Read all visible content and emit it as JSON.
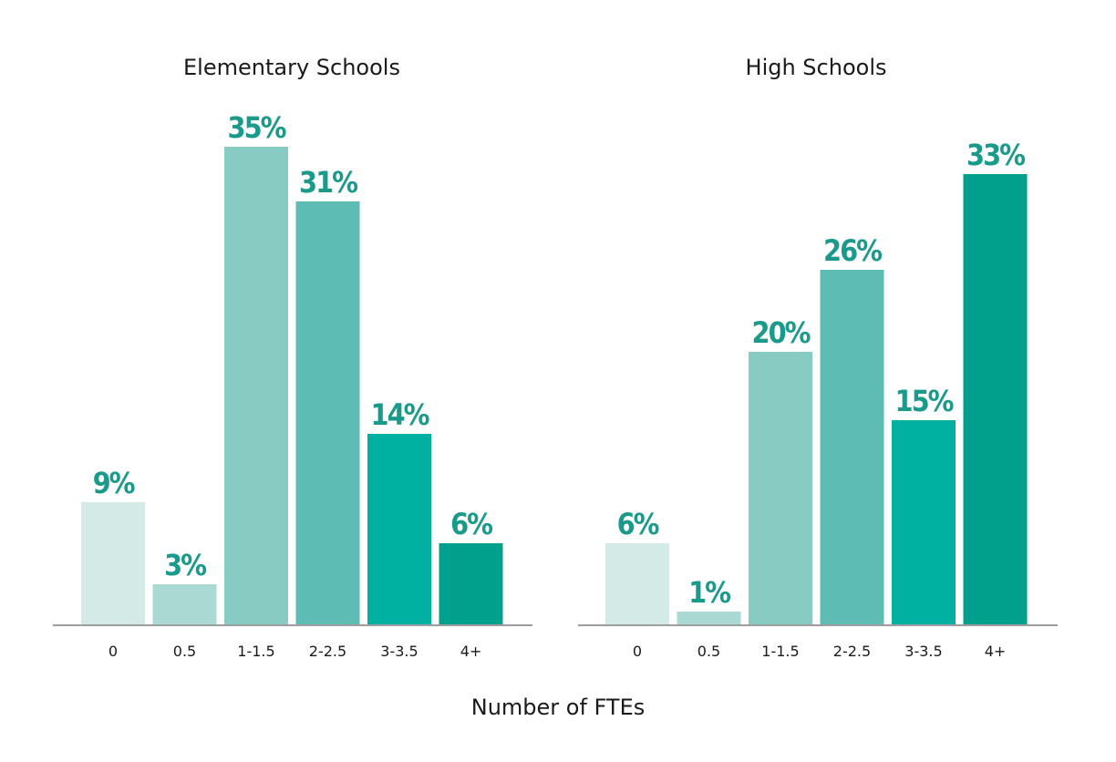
{
  "xlabel": "Number of FTEs",
  "bar_colors": [
    "#d4eae7",
    "#aad8d3",
    "#88cbc2",
    "#5dbcb3",
    "#00b0a0",
    "#00a08d"
  ],
  "label_color": "#1a9a8a",
  "axis_color": "#9e9e9e",
  "chart_data": [
    {
      "type": "bar",
      "title": "Elementary Schools",
      "categories": [
        "0",
        "0.5",
        "1-1.5",
        "2-2.5",
        "3-3.5",
        "4+"
      ],
      "values": [
        9,
        3,
        35,
        31,
        14,
        6
      ],
      "value_labels": [
        "9%",
        "3%",
        "35%",
        "31%",
        "14%",
        "6%"
      ],
      "unit": "%",
      "ylim": [
        0,
        35
      ],
      "grid": false,
      "legend": false
    },
    {
      "type": "bar",
      "title": "High Schools",
      "categories": [
        "0",
        "0.5",
        "1-1.5",
        "2-2.5",
        "3-3.5",
        "4+"
      ],
      "values": [
        6,
        1,
        20,
        26,
        15,
        33
      ],
      "value_labels": [
        "6%",
        "1%",
        "20%",
        "26%",
        "15%",
        "33%"
      ],
      "unit": "%",
      "ylim": [
        0,
        35
      ],
      "grid": false,
      "legend": false
    }
  ]
}
